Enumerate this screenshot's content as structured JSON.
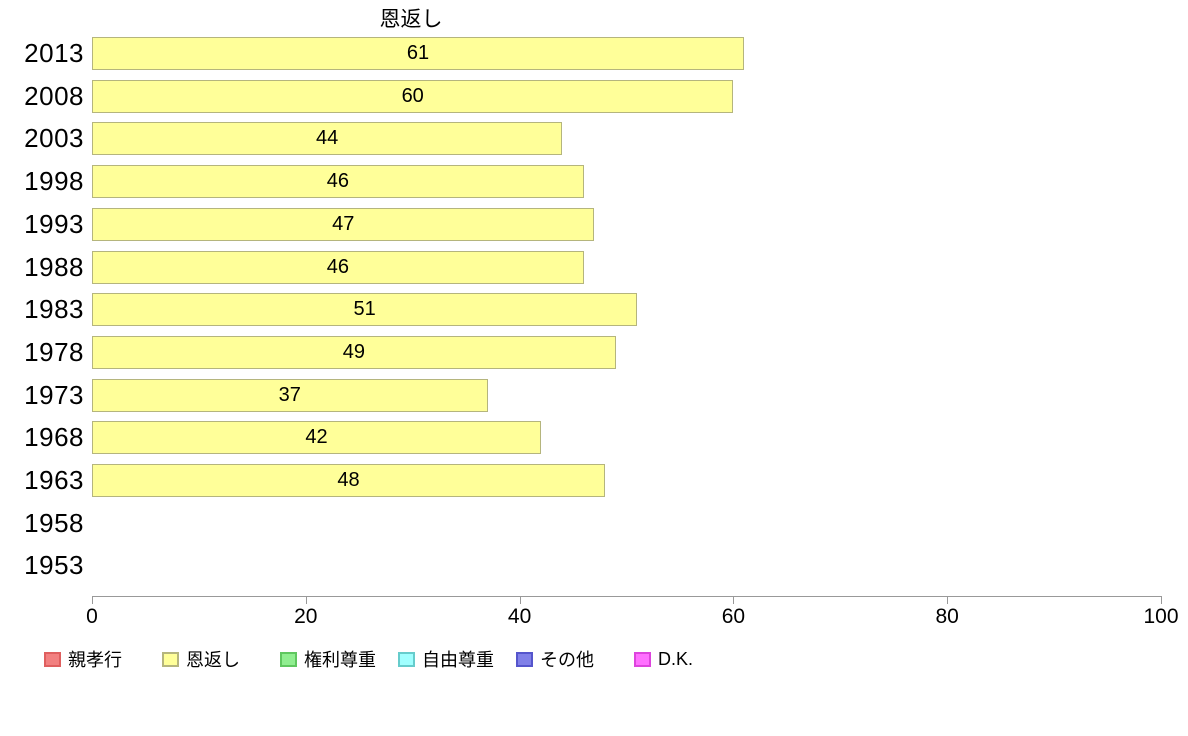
{
  "chart_data": {
    "type": "bar",
    "orientation": "horizontal",
    "title": "恩返し",
    "categories": [
      "2013",
      "2008",
      "2003",
      "1998",
      "1993",
      "1988",
      "1983",
      "1978",
      "1973",
      "1968",
      "1963",
      "1958",
      "1953"
    ],
    "values": [
      61,
      60,
      44,
      46,
      47,
      46,
      51,
      49,
      37,
      42,
      48,
      null,
      null
    ],
    "xlabel": "",
    "ylabel": "",
    "xlim": [
      0,
      100
    ],
    "x_ticks": [
      0,
      20,
      40,
      60,
      80,
      100
    ],
    "grid": false,
    "legend_position": "bottom",
    "bar_style": {
      "fill": "#ffff99",
      "border": "#b5b57d"
    },
    "axis_color": "#999999",
    "text_color": "#000000",
    "legend": [
      {
        "label": "親孝行",
        "fill": "#f28080",
        "border": "#df5f5f"
      },
      {
        "label": "恩返し",
        "fill": "#ffff99",
        "border": "#b5b57d"
      },
      {
        "label": "権利尊重",
        "fill": "#90ee90",
        "border": "#5fc75f"
      },
      {
        "label": "自由尊重",
        "fill": "#a0ffff",
        "border": "#66cccc"
      },
      {
        "label": "その他",
        "fill": "#8080e8",
        "border": "#5555cc"
      },
      {
        "label": "D.K.",
        "fill": "#ff70ff",
        "border": "#dd44dd"
      }
    ]
  }
}
